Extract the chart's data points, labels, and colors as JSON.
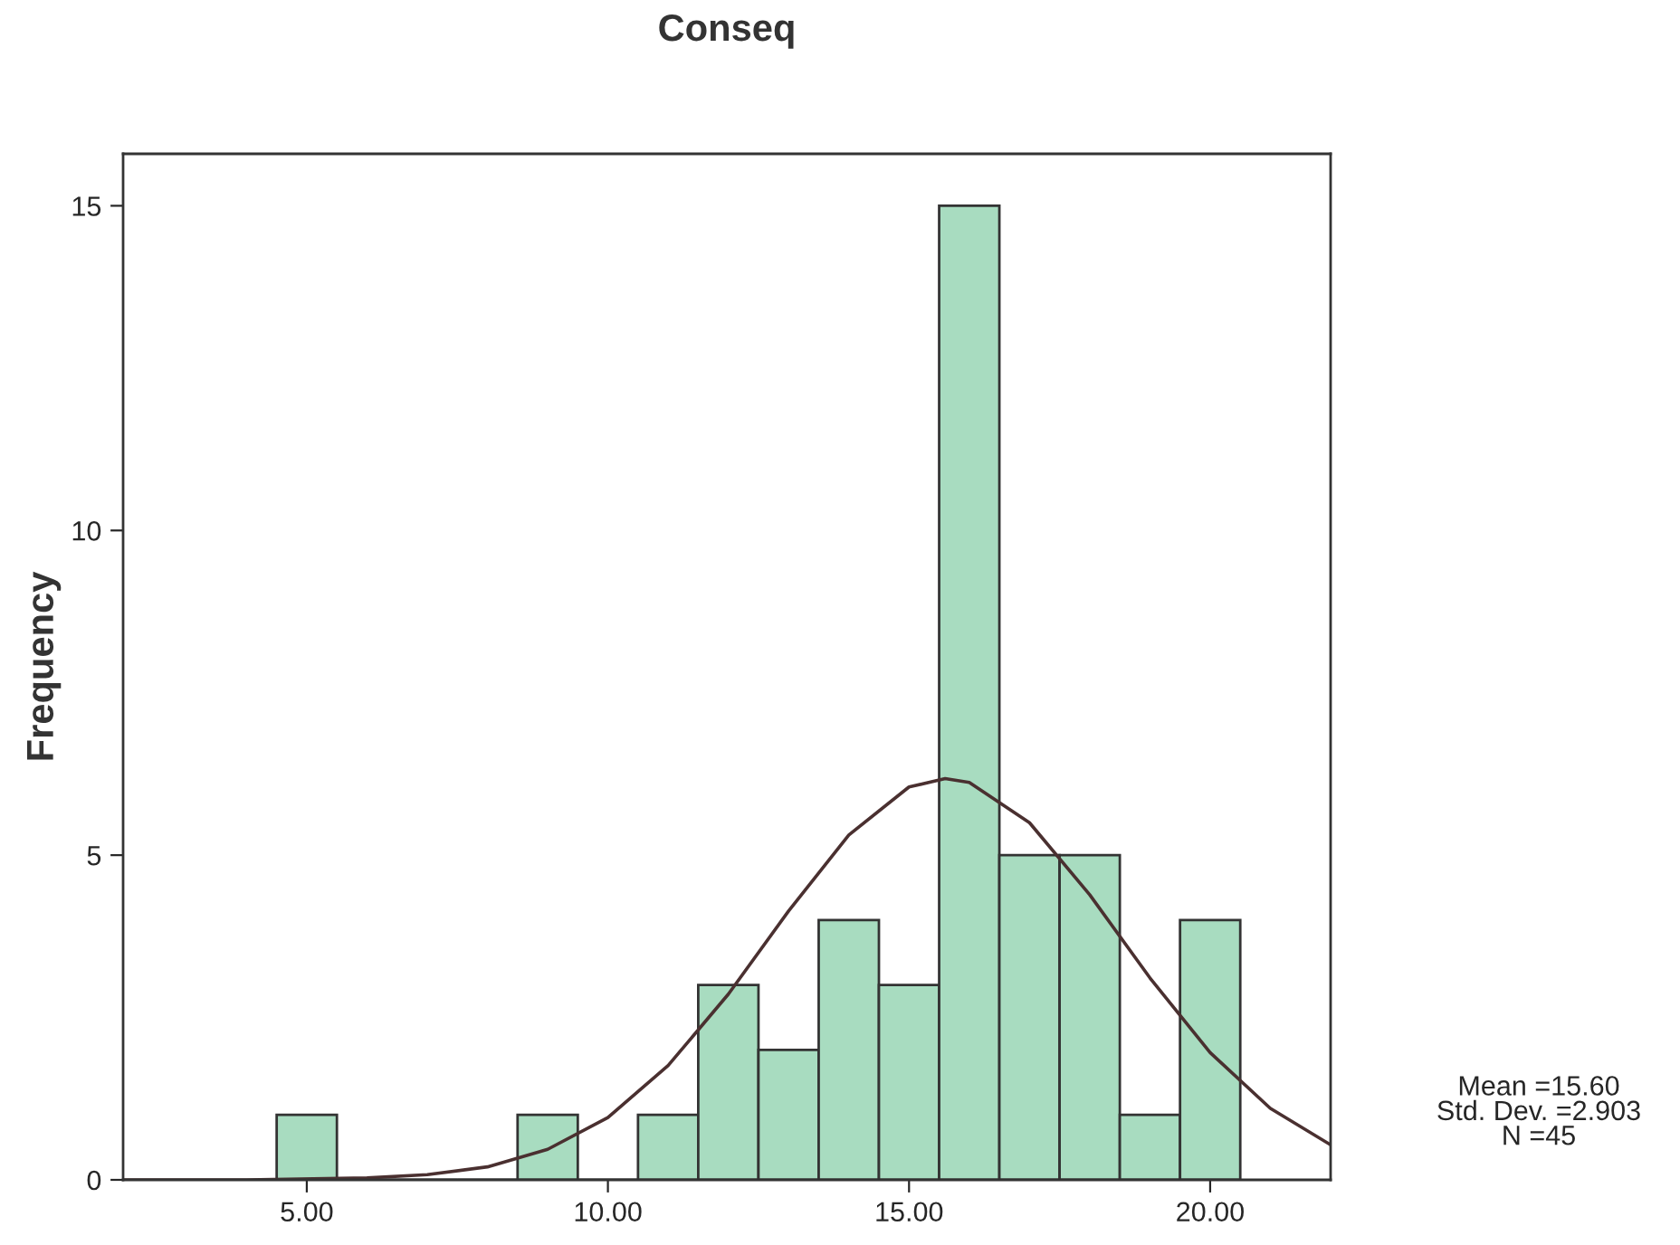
{
  "chart_data": {
    "type": "histogram",
    "title": "Conseq",
    "ylabel": "Frequency",
    "bins": [
      4.5,
      5.5,
      6.5,
      7.5,
      8.5,
      9.5,
      10.5,
      11.5,
      12.5,
      13.5,
      14.5,
      15.5,
      16.5,
      17.5,
      18.5,
      19.5,
      20.5
    ],
    "values": [
      1,
      0,
      0,
      0,
      1,
      0,
      1,
      3,
      2,
      4,
      3,
      15,
      5,
      5,
      1,
      4
    ],
    "color": "#a8dcc0",
    "series": [
      {
        "type": "line",
        "color": "#4a3030",
        "x": [
          1.95,
          4,
          6,
          7,
          8,
          9,
          10,
          11,
          12,
          13,
          14,
          15,
          15.6,
          16,
          17,
          18,
          19,
          20,
          21,
          22
        ],
        "values": [
          0.0,
          0.0,
          0.03,
          0.08,
          0.2,
          0.47,
          0.96,
          1.76,
          2.86,
          4.14,
          5.31,
          6.05,
          6.18,
          6.12,
          5.5,
          4.39,
          3.11,
          1.96,
          1.1,
          0.54
        ]
      }
    ],
    "xlim": [
      1.95,
      22.0
    ],
    "xticks": [
      {
        "value": 5,
        "label": "5.00"
      },
      {
        "value": 10,
        "label": "10.00"
      },
      {
        "value": 15,
        "label": "15.00"
      },
      {
        "value": 20,
        "label": "20.00"
      }
    ],
    "ylim": [
      0,
      15.8
    ],
    "yticks": [
      0,
      5,
      10,
      15
    ],
    "annotations": [
      "Mean =15.60\nStd. Dev. =2.903\nN =45"
    ],
    "grid": false,
    "legend": false
  }
}
